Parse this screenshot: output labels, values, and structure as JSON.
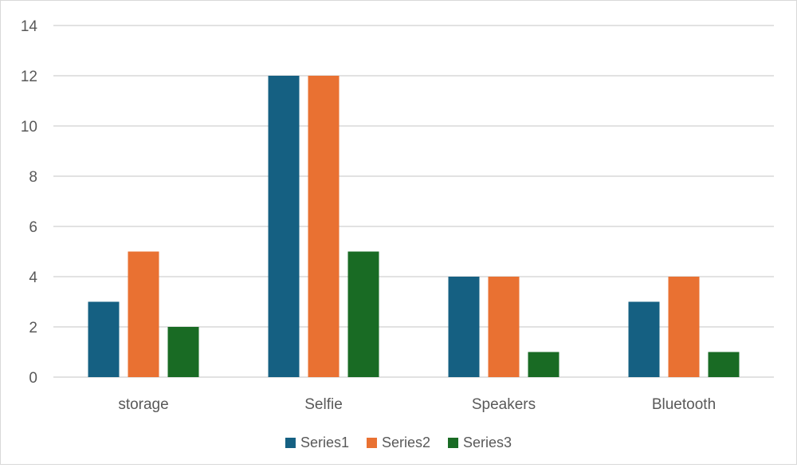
{
  "chart_data": {
    "type": "bar",
    "title": "",
    "xlabel": "",
    "ylabel": "",
    "categories": [
      "storage",
      "Selfie",
      "Speakers",
      "Bluetooth"
    ],
    "series": [
      {
        "name": "Series1",
        "values": [
          3,
          12,
          4,
          3
        ],
        "color": "#156082"
      },
      {
        "name": "Series2",
        "values": [
          5,
          12,
          4,
          4
        ],
        "color": "#e97132"
      },
      {
        "name": "Series3",
        "values": [
          2,
          5,
          1,
          1
        ],
        "color": "#196b24"
      }
    ],
    "ylim": [
      0,
      14
    ],
    "yticks": [
      0,
      2,
      4,
      6,
      8,
      10,
      12,
      14
    ],
    "grid": true,
    "legend": "bottom"
  }
}
